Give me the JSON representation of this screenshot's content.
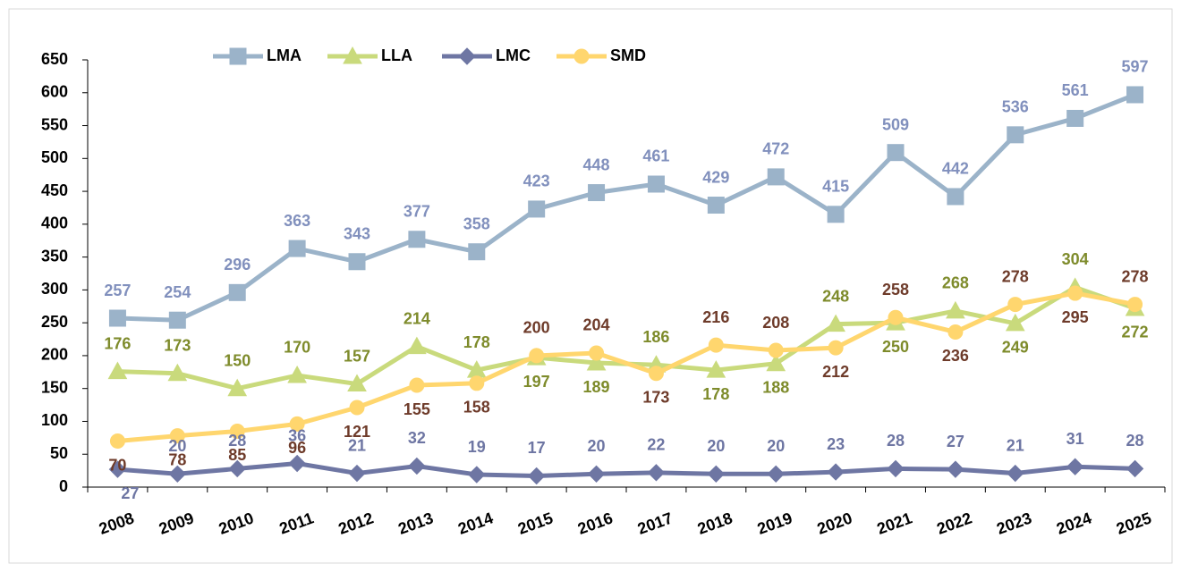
{
  "chart_data": {
    "type": "line",
    "categories": [
      "2008",
      "2009",
      "2010",
      "2011",
      "2012",
      "2013",
      "2014",
      "2015",
      "2016",
      "2017",
      "2018",
      "2019",
      "2020",
      "2021",
      "2022",
      "2023",
      "2024",
      "2025"
    ],
    "series": [
      {
        "name": "LMA",
        "color": "#9bb3c9",
        "label_color": "#8190bd",
        "marker": "square",
        "values": [
          257,
          254,
          296,
          363,
          343,
          377,
          358,
          423,
          448,
          461,
          429,
          472,
          415,
          509,
          442,
          536,
          561,
          597
        ]
      },
      {
        "name": "LLA",
        "color": "#c9da7c",
        "label_color": "#7e8b2b",
        "marker": "triangle",
        "values": [
          176,
          173,
          150,
          170,
          157,
          214,
          178,
          197,
          189,
          186,
          178,
          188,
          248,
          250,
          268,
          249,
          304,
          272
        ]
      },
      {
        "name": "LMC",
        "color": "#6e76a3",
        "label_color": "#6e76a3",
        "marker": "diamond",
        "values": [
          27,
          20,
          28,
          36,
          21,
          32,
          19,
          17,
          20,
          22,
          20,
          20,
          23,
          28,
          27,
          21,
          31,
          28
        ]
      },
      {
        "name": "SMD",
        "color": "#ffd66e",
        "label_color": "#6e3b2a",
        "marker": "circle",
        "values": [
          70,
          78,
          85,
          96,
          121,
          155,
          158,
          200,
          204,
          173,
          216,
          208,
          212,
          258,
          236,
          278,
          295,
          278
        ]
      }
    ],
    "ylim": [
      0,
      650
    ],
    "yticks": [
      0,
      50,
      100,
      150,
      200,
      250,
      300,
      350,
      400,
      450,
      500,
      550,
      600,
      650
    ],
    "legend": "top"
  }
}
